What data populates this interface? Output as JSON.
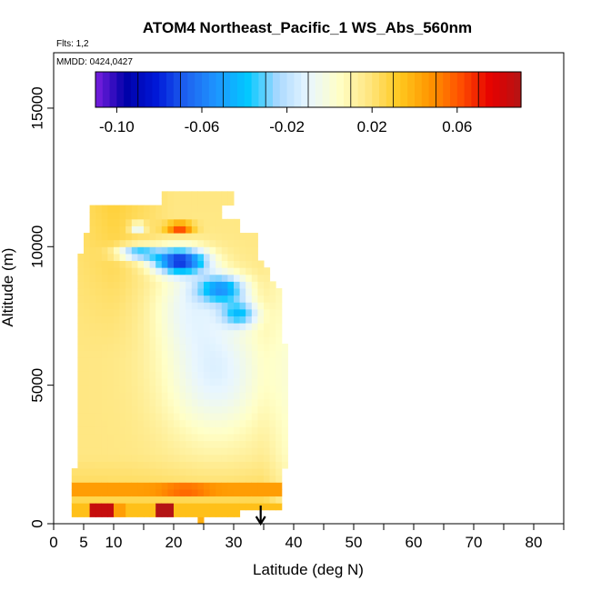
{
  "chart_data": {
    "type": "heatmap",
    "title": "ATOM4 Northeast_Pacific_1 WS_Abs_560nm",
    "flights_label": "Flts: 1,2",
    "dates_label": "MMDD: 0424,0427",
    "xlabel": "Latitude (deg N)",
    "ylabel": "Altitude (m)",
    "xlim": [
      0,
      85
    ],
    "ylim": [
      0,
      17000
    ],
    "x_ticks": [
      0,
      5,
      10,
      20,
      30,
      40,
      50,
      60,
      70,
      80
    ],
    "y_ticks": [
      0,
      5000,
      10000,
      15000
    ],
    "colorbar": {
      "range": [
        -0.11,
        0.09
      ],
      "tick_values": [
        -0.1,
        -0.06,
        -0.02,
        0.02,
        0.06
      ],
      "tick_labels": [
        "-0.10",
        "-0.06",
        "-0.02",
        "0.02",
        "0.06"
      ],
      "colors": [
        "#7a1fe0",
        "#0000a8",
        "#0018d8",
        "#1e64f0",
        "#1e96ff",
        "#00c8ff",
        "#aad8ff",
        "#e8f6ff",
        "#ffffc8",
        "#ffe680",
        "#ffc81e",
        "#ff9600",
        "#ff5000",
        "#e60000",
        "#b41414"
      ]
    },
    "arrow_marker": {
      "latitude": 34.5,
      "direction": "down"
    },
    "grid": false,
    "legend": "top"
  },
  "icons": {
    "arrow": "down-arrow-icon"
  }
}
